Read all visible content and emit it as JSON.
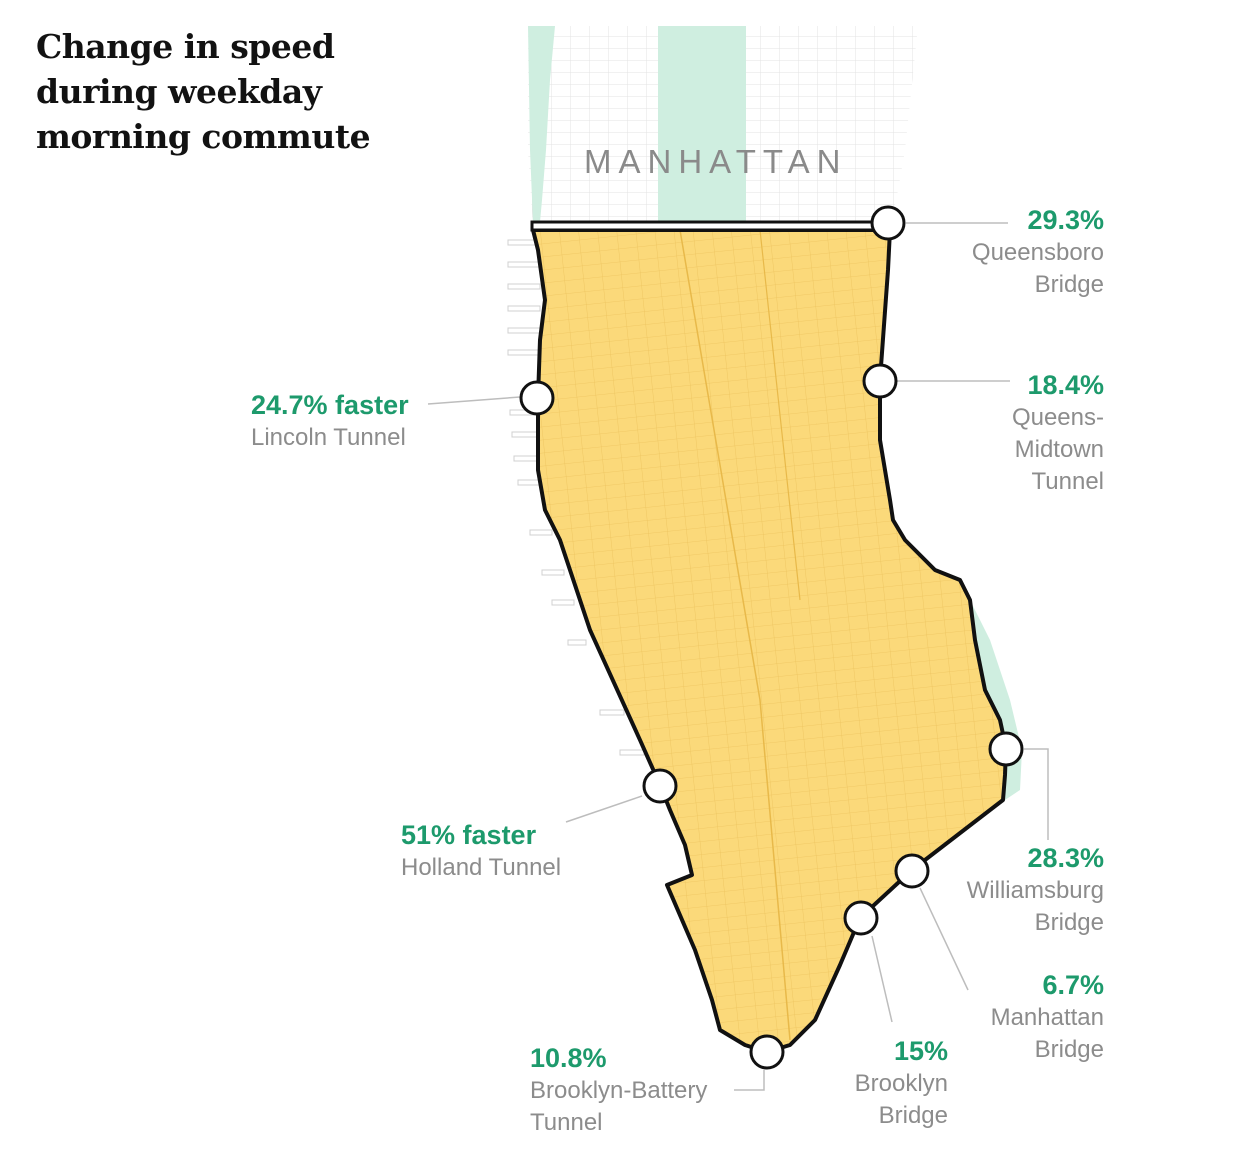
{
  "title": "Change in speed during weekday morning commute",
  "borough_label": "MANHATTAN",
  "colors": {
    "zone_fill": "#fbd97a",
    "zone_stroke": "#111111",
    "park": "#cfeee0",
    "streets": "#e2e2e2",
    "value_text": "#1d9a6c",
    "name_text": "#8c8c8c",
    "leader_line": "#bdbdbd"
  },
  "crossings": [
    {
      "id": "queensboro",
      "value": "29.3%",
      "name": "Queensboro\nBridge"
    },
    {
      "id": "queens-midtown",
      "value": "18.4%",
      "name": "Queens-\nMidtown\nTunnel"
    },
    {
      "id": "lincoln",
      "value": "24.7% faster",
      "name": "Lincoln Tunnel"
    },
    {
      "id": "holland",
      "value": "51% faster",
      "name": "Holland Tunnel"
    },
    {
      "id": "williamsburg",
      "value": "28.3%",
      "name": "Williamsburg\nBridge"
    },
    {
      "id": "manhattan",
      "value": "6.7%",
      "name": "Manhattan\nBridge"
    },
    {
      "id": "brooklyn",
      "value": "15%",
      "name": "Brooklyn\nBridge"
    },
    {
      "id": "brooklyn-battery",
      "value": "10.8%",
      "name": "Brooklyn-Battery\nTunnel"
    }
  ]
}
